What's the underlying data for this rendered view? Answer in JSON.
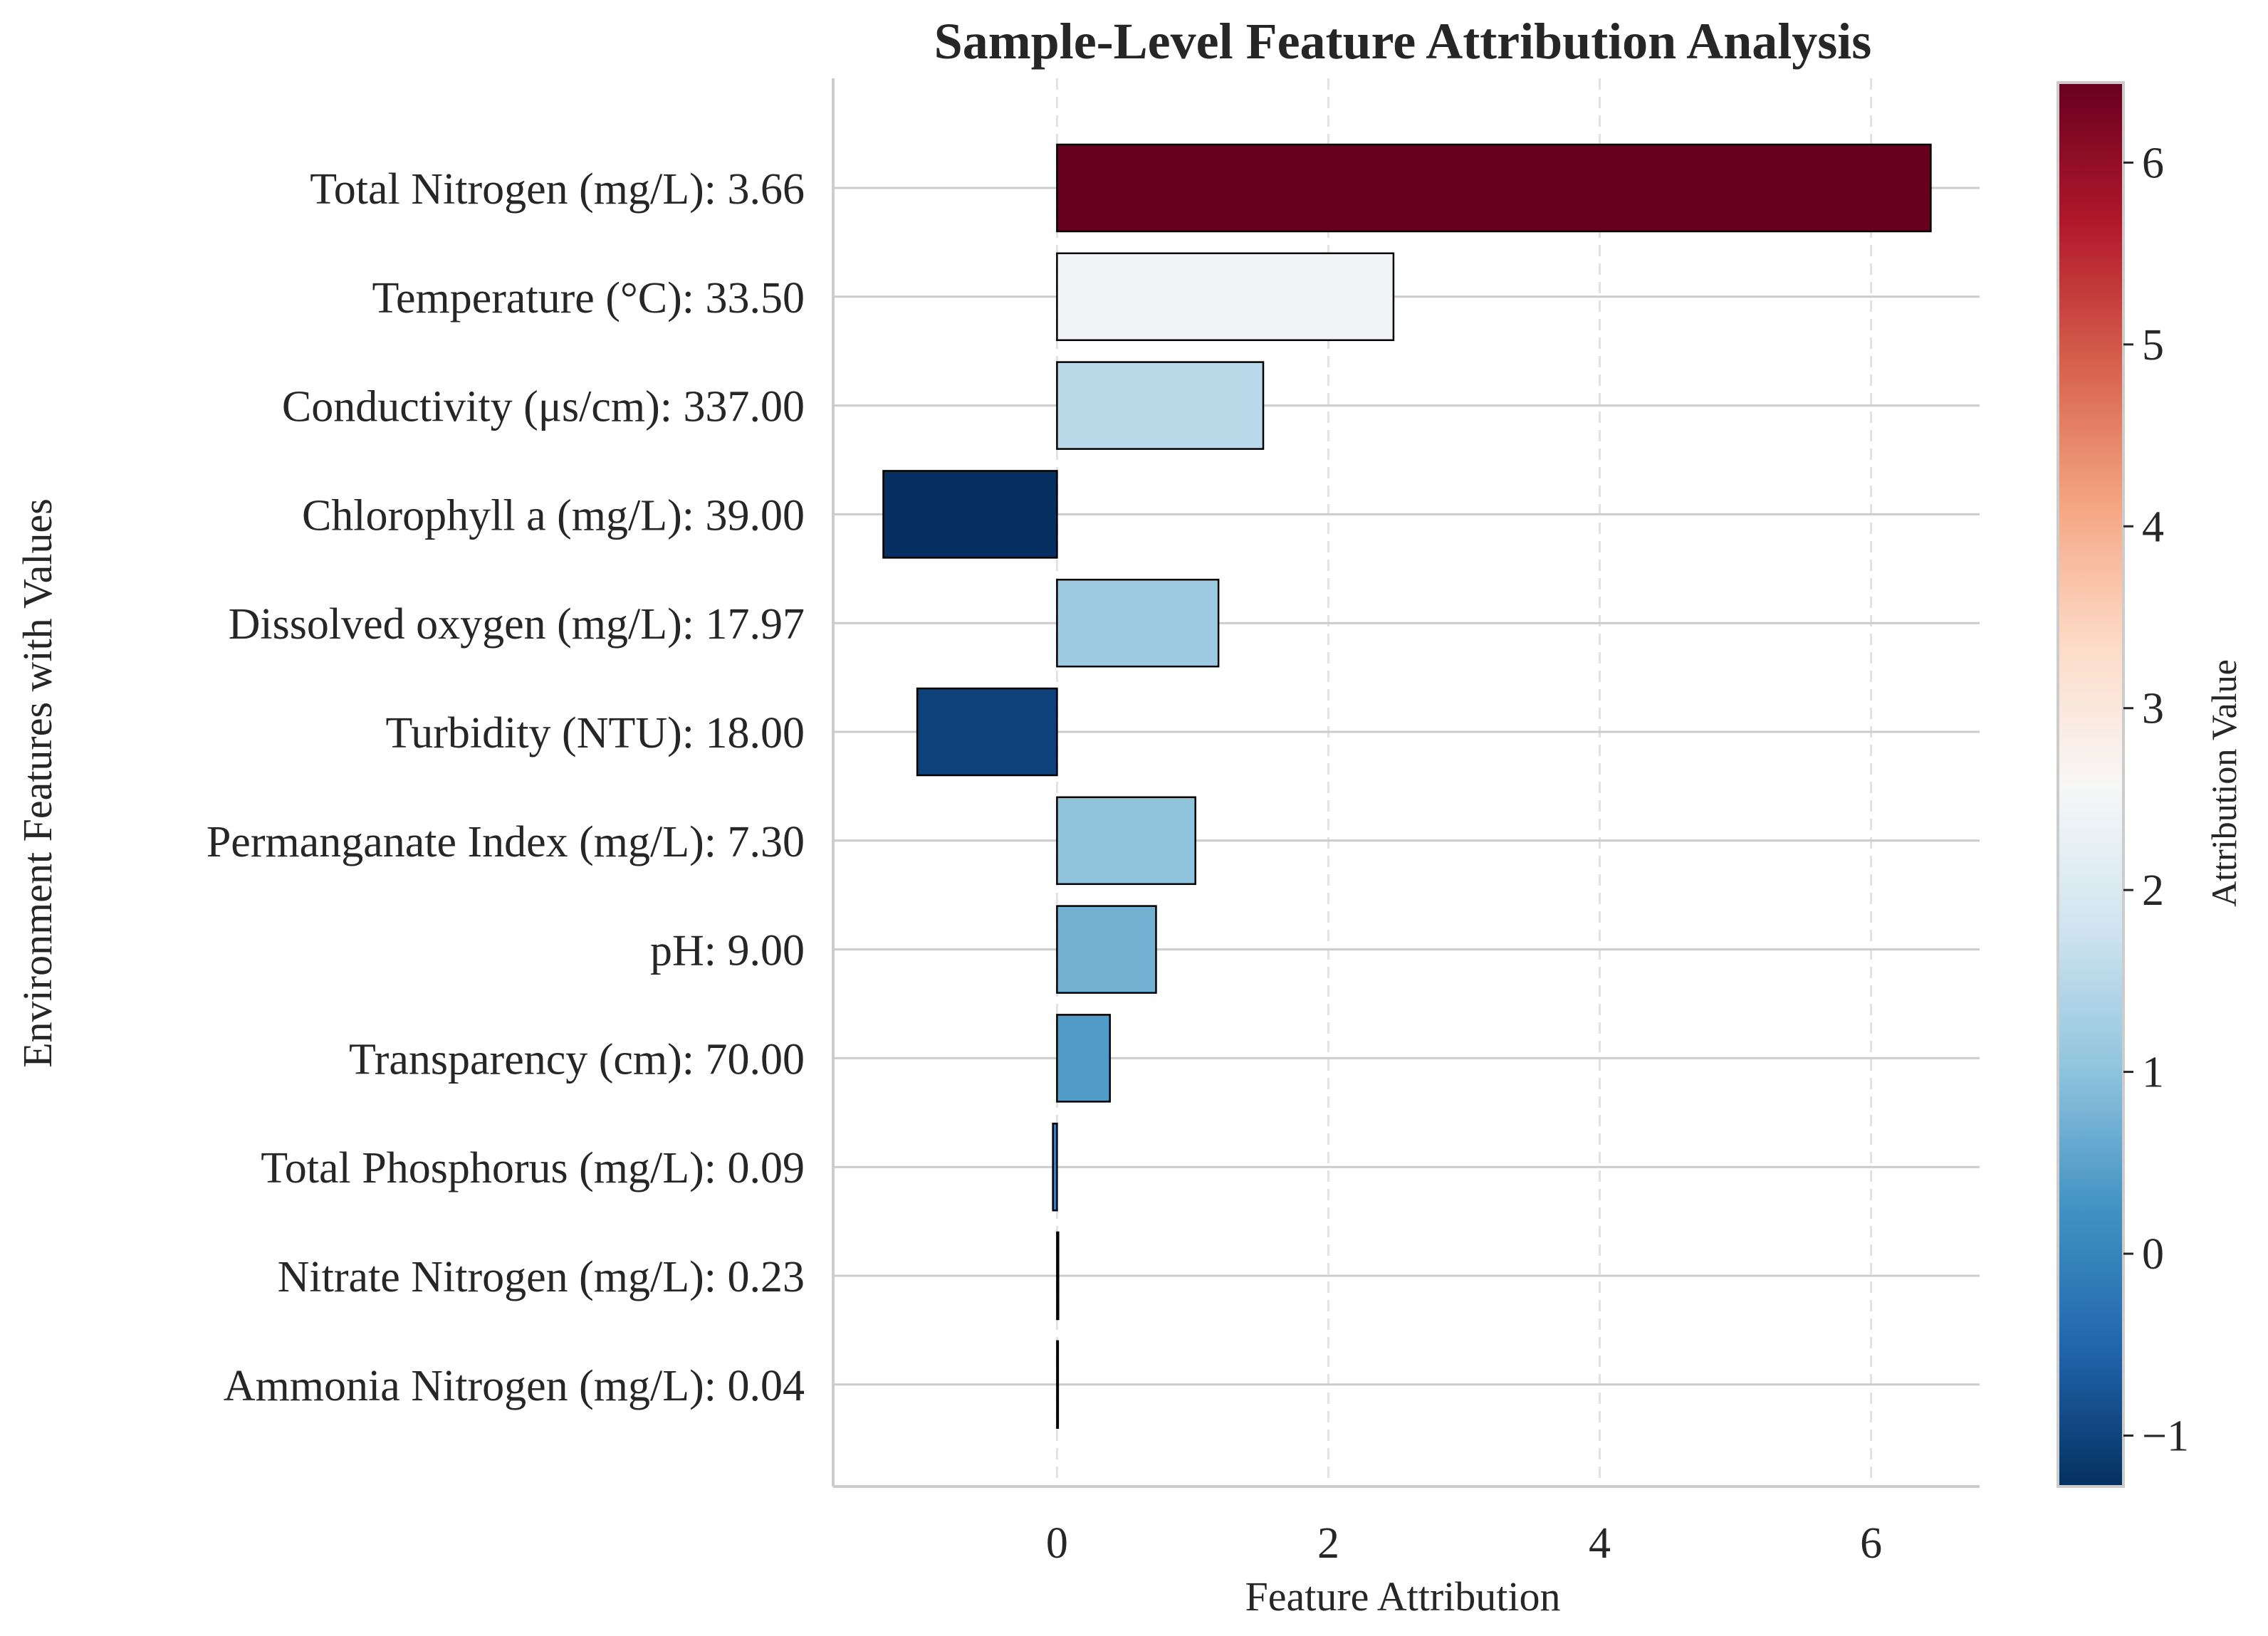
{
  "chart_data": {
    "type": "bar",
    "orientation": "horizontal",
    "title": "Sample-Level Feature Attribution Analysis",
    "xlabel": "Feature Attribution",
    "ylabel": "Environment Features with Values",
    "xlim": [
      -1.65,
      6.8
    ],
    "xticks": [
      0,
      2,
      4,
      6
    ],
    "grid": "on",
    "categories": [
      "Total Nitrogen (mg/L): 3.66",
      "Temperature (°C): 33.50",
      "Conductivity (μs/cm): 337.00",
      "Chlorophyll a (mg/L): 39.00",
      "Dissolved oxygen (mg/L): 17.97",
      "Turbidity (NTU): 18.00",
      "Permanganate Index (mg/L): 7.30",
      "pH: 9.00",
      "Transparency (cm): 70.00",
      "Total Phosphorus (mg/L): 0.09",
      "Nitrate Nitrogen (mg/L): 0.23",
      "Ammonia Nitrogen (mg/L): 0.04"
    ],
    "values": [
      6.44,
      2.48,
      1.52,
      -1.28,
      1.19,
      -1.03,
      1.02,
      0.73,
      0.39,
      -0.03,
      0.01,
      0.005
    ],
    "colorbar": {
      "label": "Attribution Value",
      "range": [
        -1.28,
        6.44
      ],
      "ticks": [
        -1,
        0,
        1,
        2,
        3,
        4,
        5,
        6
      ],
      "colormap": "RdBu_r"
    }
  }
}
